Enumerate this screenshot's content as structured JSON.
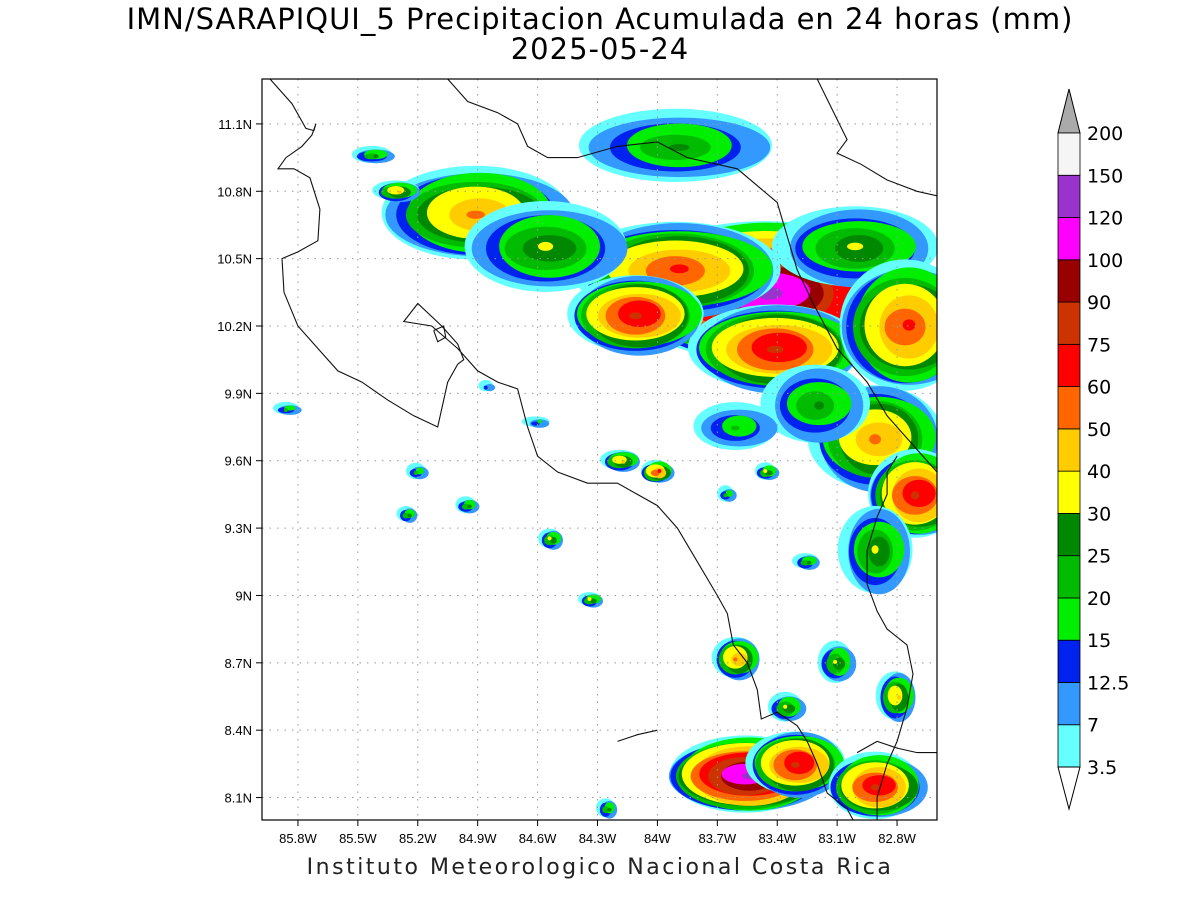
{
  "title": "IMN/SARAPIQUI_5 Precipitacion Acumulada en 24 horas (mm)",
  "subtitle": "2025-05-24",
  "footer": "Instituto Meteorologico Nacional Costa Rica",
  "map": {
    "lon_range": [
      -85.98,
      -82.6
    ],
    "lat_range": [
      8.0,
      11.3
    ],
    "lat_ticks": [
      {
        "value": 11.1,
        "label": "11.1N"
      },
      {
        "value": 10.8,
        "label": "10.8N"
      },
      {
        "value": 10.5,
        "label": "10.5N"
      },
      {
        "value": 10.2,
        "label": "10.2N"
      },
      {
        "value": 9.9,
        "label": "9.9N"
      },
      {
        "value": 9.6,
        "label": "9.6N"
      },
      {
        "value": 9.3,
        "label": "9.3N"
      },
      {
        "value": 9.0,
        "label": "9N"
      },
      {
        "value": 8.7,
        "label": "8.7N"
      },
      {
        "value": 8.4,
        "label": "8.4N"
      },
      {
        "value": 8.1,
        "label": "8.1N"
      }
    ],
    "lon_ticks": [
      {
        "value": -85.8,
        "label": "85.8W"
      },
      {
        "value": -85.5,
        "label": "85.5W"
      },
      {
        "value": -85.2,
        "label": "85.2W"
      },
      {
        "value": -84.9,
        "label": "84.9W"
      },
      {
        "value": -84.6,
        "label": "84.6W"
      },
      {
        "value": -84.3,
        "label": "84.3W"
      },
      {
        "value": -84.0,
        "label": "84W"
      },
      {
        "value": -83.7,
        "label": "83.7W"
      },
      {
        "value": -83.4,
        "label": "83.4W"
      },
      {
        "value": -83.1,
        "label": "83.1W"
      },
      {
        "value": -82.8,
        "label": "82.8W"
      }
    ],
    "grid": "dotted"
  },
  "colorbar": {
    "levels": [
      "3.5",
      "7",
      "12.5",
      "15",
      "20",
      "25",
      "30",
      "40",
      "50",
      "60",
      "75",
      "90",
      "100",
      "120",
      "150",
      "200"
    ],
    "colors": [
      "#66ffff",
      "#3399ff",
      "#0022ee",
      "#00ee00",
      "#00bb00",
      "#008800",
      "#ffff00",
      "#ffcc00",
      "#ff6600",
      "#ff0000",
      "#cc3300",
      "#990000",
      "#ff00ff",
      "#9933cc",
      "#f5f5f5"
    ],
    "under_color": "#ffffff",
    "over_color": "#aaaaaa"
  },
  "rain_cells": [
    {
      "lon": -83.45,
      "lat": 10.35,
      "rx": 0.75,
      "ry": 0.32,
      "peak": 120
    },
    {
      "lon": -83.9,
      "lat": 10.45,
      "rx": 0.55,
      "ry": 0.22,
      "peak": 60
    },
    {
      "lon": -84.9,
      "lat": 10.7,
      "rx": 0.5,
      "ry": 0.22,
      "peak": 50
    },
    {
      "lon": -83.4,
      "lat": 10.1,
      "rx": 0.45,
      "ry": 0.2,
      "peak": 75
    },
    {
      "lon": -84.55,
      "lat": 10.55,
      "rx": 0.45,
      "ry": 0.22,
      "peak": 30
    },
    {
      "lon": -84.1,
      "lat": 10.25,
      "rx": 0.35,
      "ry": 0.18,
      "peak": 75
    },
    {
      "lon": -83.9,
      "lat": 11.0,
      "rx": 0.55,
      "ry": 0.18,
      "peak": 25
    },
    {
      "lon": -83.0,
      "lat": 10.55,
      "rx": 0.45,
      "ry": 0.2,
      "peak": 30
    },
    {
      "lon": -82.75,
      "lat": 10.2,
      "rx": 0.35,
      "ry": 0.3,
      "peak": 60
    },
    {
      "lon": -82.9,
      "lat": 9.7,
      "rx": 0.35,
      "ry": 0.25,
      "peak": 50
    },
    {
      "lon": -82.7,
      "lat": 9.45,
      "rx": 0.25,
      "ry": 0.2,
      "peak": 75
    },
    {
      "lon": -83.2,
      "lat": 9.85,
      "rx": 0.3,
      "ry": 0.2,
      "peak": 25
    },
    {
      "lon": -83.6,
      "lat": 9.75,
      "rx": 0.25,
      "ry": 0.12,
      "peak": 20
    },
    {
      "lon": -82.9,
      "lat": 9.2,
      "rx": 0.2,
      "ry": 0.22,
      "peak": 30
    },
    {
      "lon": -83.55,
      "lat": 8.2,
      "rx": 0.4,
      "ry": 0.17,
      "peak": 120
    },
    {
      "lon": -83.3,
      "lat": 8.25,
      "rx": 0.25,
      "ry": 0.15,
      "peak": 75
    },
    {
      "lon": -82.9,
      "lat": 8.15,
      "rx": 0.25,
      "ry": 0.15,
      "peak": 75
    },
    {
      "lon": -83.6,
      "lat": 8.72,
      "rx": 0.12,
      "ry": 0.1,
      "peak": 50
    },
    {
      "lon": -83.1,
      "lat": 8.7,
      "rx": 0.1,
      "ry": 0.1,
      "peak": 30
    },
    {
      "lon": -82.8,
      "lat": 8.55,
      "rx": 0.1,
      "ry": 0.12,
      "peak": 40
    },
    {
      "lon": -83.35,
      "lat": 8.5,
      "rx": 0.1,
      "ry": 0.07,
      "peak": 30
    },
    {
      "lon": -84.18,
      "lat": 9.6,
      "rx": 0.1,
      "ry": 0.05,
      "peak": 40
    },
    {
      "lon": -84.0,
      "lat": 9.55,
      "rx": 0.08,
      "ry": 0.05,
      "peak": 60
    },
    {
      "lon": -84.53,
      "lat": 9.25,
      "rx": 0.06,
      "ry": 0.05,
      "peak": 30
    },
    {
      "lon": -84.95,
      "lat": 9.4,
      "rx": 0.06,
      "ry": 0.04,
      "peak": 25
    },
    {
      "lon": -85.25,
      "lat": 9.36,
      "rx": 0.05,
      "ry": 0.04,
      "peak": 25
    },
    {
      "lon": -85.2,
      "lat": 9.55,
      "rx": 0.06,
      "ry": 0.04,
      "peak": 20
    },
    {
      "lon": -84.33,
      "lat": 8.98,
      "rx": 0.06,
      "ry": 0.035,
      "peak": 30
    },
    {
      "lon": -83.45,
      "lat": 9.55,
      "rx": 0.06,
      "ry": 0.04,
      "peak": 30
    },
    {
      "lon": -83.25,
      "lat": 9.15,
      "rx": 0.07,
      "ry": 0.04,
      "peak": 25
    },
    {
      "lon": -83.65,
      "lat": 9.45,
      "rx": 0.05,
      "ry": 0.04,
      "peak": 20
    },
    {
      "lon": -84.6,
      "lat": 9.77,
      "rx": 0.08,
      "ry": 0.03,
      "peak": 15
    },
    {
      "lon": -85.42,
      "lat": 10.96,
      "rx": 0.12,
      "ry": 0.04,
      "peak": 25
    },
    {
      "lon": -85.3,
      "lat": 10.8,
      "rx": 0.12,
      "ry": 0.05,
      "peak": 40
    },
    {
      "lon": -85.85,
      "lat": 9.83,
      "rx": 0.08,
      "ry": 0.03,
      "peak": 20
    },
    {
      "lon": -84.25,
      "lat": 8.05,
      "rx": 0.05,
      "ry": 0.05,
      "peak": 25
    },
    {
      "lon": -84.85,
      "lat": 9.93,
      "rx": 0.05,
      "ry": 0.03,
      "peak": 12.5
    }
  ],
  "coastlines": [
    [
      [
        -85.94,
        11.3
      ],
      [
        -85.83,
        11.19
      ],
      [
        -85.76,
        11.08
      ],
      [
        -85.72,
        11.07
      ],
      [
        -85.71,
        11.1
      ],
      [
        -85.73,
        11.05
      ],
      [
        -85.78,
        11.0
      ],
      [
        -85.86,
        10.95
      ],
      [
        -85.9,
        10.9
      ],
      [
        -85.82,
        10.9
      ],
      [
        -85.74,
        10.86
      ],
      [
        -85.69,
        10.72
      ],
      [
        -85.7,
        10.58
      ],
      [
        -85.8,
        10.53
      ],
      [
        -85.88,
        10.5
      ],
      [
        -85.87,
        10.35
      ],
      [
        -85.8,
        10.2
      ],
      [
        -85.7,
        10.1
      ],
      [
        -85.6,
        10.0
      ],
      [
        -85.48,
        9.95
      ],
      [
        -85.35,
        9.87
      ],
      [
        -85.22,
        9.8
      ],
      [
        -85.1,
        9.75
      ],
      [
        -85.05,
        9.95
      ],
      [
        -85.0,
        10.03
      ],
      [
        -84.97,
        10.05
      ],
      [
        -85.0,
        10.12
      ],
      [
        -85.08,
        10.2
      ],
      [
        -85.2,
        10.3
      ],
      [
        -85.27,
        10.22
      ],
      [
        -85.13,
        10.2
      ],
      [
        -85.0,
        10.1
      ],
      [
        -84.9,
        10.0
      ],
      [
        -84.8,
        9.95
      ],
      [
        -84.7,
        9.92
      ],
      [
        -84.65,
        9.75
      ],
      [
        -84.6,
        9.62
      ],
      [
        -84.5,
        9.55
      ],
      [
        -84.35,
        9.5
      ],
      [
        -84.2,
        9.5
      ],
      [
        -84.1,
        9.45
      ],
      [
        -84.0,
        9.4
      ],
      [
        -83.9,
        9.3
      ],
      [
        -83.8,
        9.15
      ],
      [
        -83.7,
        9.0
      ],
      [
        -83.65,
        8.92
      ],
      [
        -83.62,
        8.78
      ],
      [
        -83.55,
        8.7
      ],
      [
        -83.5,
        8.58
      ],
      [
        -83.48,
        8.45
      ],
      [
        -83.4,
        8.48
      ],
      [
        -83.3,
        8.42
      ],
      [
        -83.25,
        8.35
      ],
      [
        -83.2,
        8.25
      ],
      [
        -83.15,
        8.12
      ],
      [
        -83.05,
        8.05
      ],
      [
        -83.02,
        8.0
      ]
    ],
    [
      [
        -85.05,
        11.3
      ],
      [
        -84.95,
        11.2
      ],
      [
        -84.8,
        11.15
      ],
      [
        -84.7,
        11.1
      ],
      [
        -84.65,
        11.0
      ],
      [
        -84.55,
        10.95
      ],
      [
        -84.4,
        10.95
      ],
      [
        -84.2,
        11.0
      ],
      [
        -84.0,
        11.02
      ],
      [
        -83.85,
        10.95
      ],
      [
        -83.75,
        10.93
      ],
      [
        -83.6,
        10.9
      ],
      [
        -83.4,
        10.75
      ],
      [
        -83.35,
        10.6
      ],
      [
        -83.3,
        10.45
      ],
      [
        -83.22,
        10.3
      ],
      [
        -83.1,
        10.1
      ],
      [
        -82.95,
        9.95
      ],
      [
        -82.85,
        9.8
      ],
      [
        -82.75,
        9.7
      ],
      [
        -82.65,
        9.6
      ],
      [
        -82.6,
        9.55
      ]
    ],
    [
      [
        -82.8,
        9.62
      ],
      [
        -82.85,
        9.55
      ],
      [
        -82.85,
        9.45
      ],
      [
        -82.9,
        9.35
      ],
      [
        -82.95,
        9.2
      ],
      [
        -82.95,
        9.05
      ],
      [
        -82.9,
        8.93
      ],
      [
        -82.85,
        8.85
      ],
      [
        -82.75,
        8.78
      ],
      [
        -82.72,
        8.65
      ],
      [
        -82.75,
        8.5
      ],
      [
        -82.8,
        8.35
      ],
      [
        -82.85,
        8.25
      ],
      [
        -82.9,
        8.1
      ],
      [
        -82.9,
        8.0
      ]
    ],
    [
      [
        -83.2,
        11.3
      ],
      [
        -83.1,
        11.12
      ],
      [
        -83.05,
        11.03
      ],
      [
        -83.1,
        10.97
      ],
      [
        -82.98,
        10.92
      ],
      [
        -82.85,
        10.85
      ],
      [
        -82.7,
        10.8
      ],
      [
        -82.6,
        10.78
      ]
    ],
    [
      [
        -84.2,
        8.35
      ],
      [
        -84.1,
        8.38
      ],
      [
        -84.0,
        8.4
      ]
    ],
    [
      [
        -82.6,
        8.3
      ],
      [
        -82.7,
        8.3
      ],
      [
        -82.8,
        8.32
      ],
      [
        -82.9,
        8.35
      ],
      [
        -83.0,
        8.3
      ]
    ]
  ],
  "lakes": [
    [
      [
        -85.12,
        10.18
      ],
      [
        -85.07,
        10.2
      ],
      [
        -85.06,
        10.15
      ],
      [
        -85.1,
        10.13
      ],
      [
        -85.12,
        10.18
      ]
    ]
  ]
}
